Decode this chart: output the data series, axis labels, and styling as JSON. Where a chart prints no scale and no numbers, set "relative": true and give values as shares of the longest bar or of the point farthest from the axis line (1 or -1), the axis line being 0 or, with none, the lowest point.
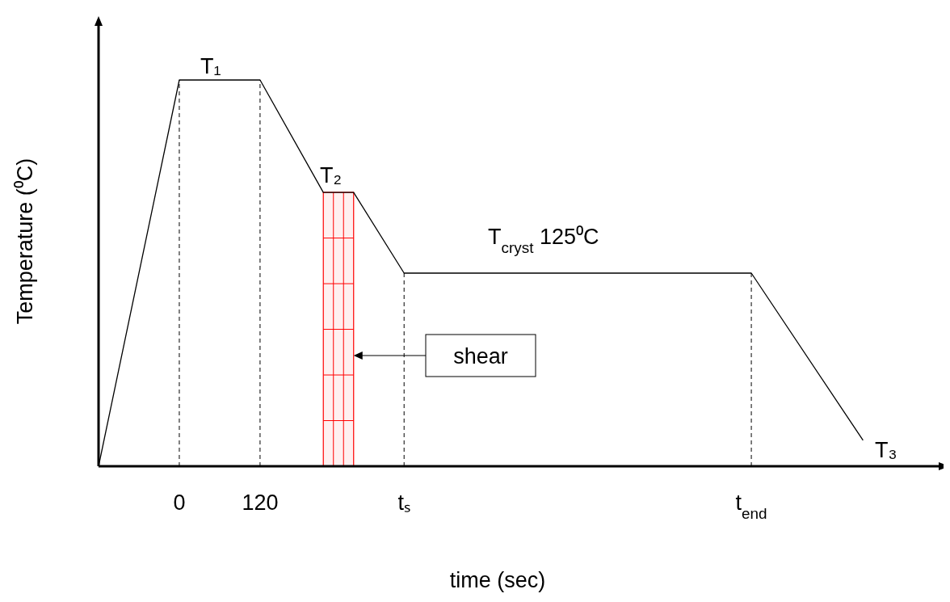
{
  "chart_data": {
    "type": "line",
    "relative": true,
    "xlabel": "time (sec)",
    "ylabel": "Temperature (⁰C)",
    "x": [
      -120,
      0,
      120,
      214,
      259,
      334,
      850,
      1016
    ],
    "values": [
      0,
      1,
      1,
      0.709,
      0.709,
      0.5,
      0.5,
      0.067
    ],
    "color": "#000000",
    "line_style": "solid",
    "marker": "none",
    "xlim": [
      -120,
      1138
    ],
    "xticks": [
      0,
      120,
      {
        "value": 334,
        "label": "tₛ"
      },
      {
        "value": 850,
        "label": "t$_{end}$"
      }
    ],
    "ref_lines": [
      {
        "axis": "x",
        "value": 0,
        "line_style": "dashed",
        "color": "#000000"
      },
      {
        "axis": "x",
        "value": 120,
        "line_style": "dashed",
        "color": "#000000"
      },
      {
        "axis": "x",
        "value": 334,
        "line_style": "dashed",
        "color": "#000000"
      },
      {
        "axis": "x",
        "value": 850,
        "line_style": "dashed",
        "color": "#000000"
      }
    ],
    "bands": [
      {
        "axis": "x",
        "from": 214,
        "to": 259,
        "color": "#ff0000"
      }
    ],
    "annotations": [
      "T₁",
      "T₂",
      "T$_{cryst}$  125⁰C",
      "T₃",
      "shear"
    ]
  }
}
